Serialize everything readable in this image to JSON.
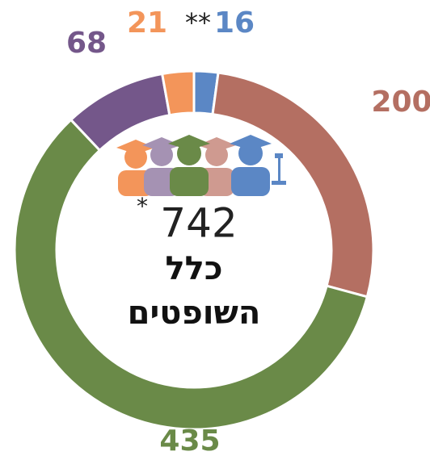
{
  "chart_data": {
    "type": "donut",
    "values": [
      16,
      200,
      435,
      68,
      21
    ],
    "colors": [
      "#5b87c5",
      "#b46f62",
      "#6a8a48",
      "#74578a",
      "#f3955a"
    ],
    "annotations": [
      "**"
    ],
    "total": 742,
    "total_note": "*",
    "center_lines": [
      "כלל",
      "השופטים"
    ]
  }
}
